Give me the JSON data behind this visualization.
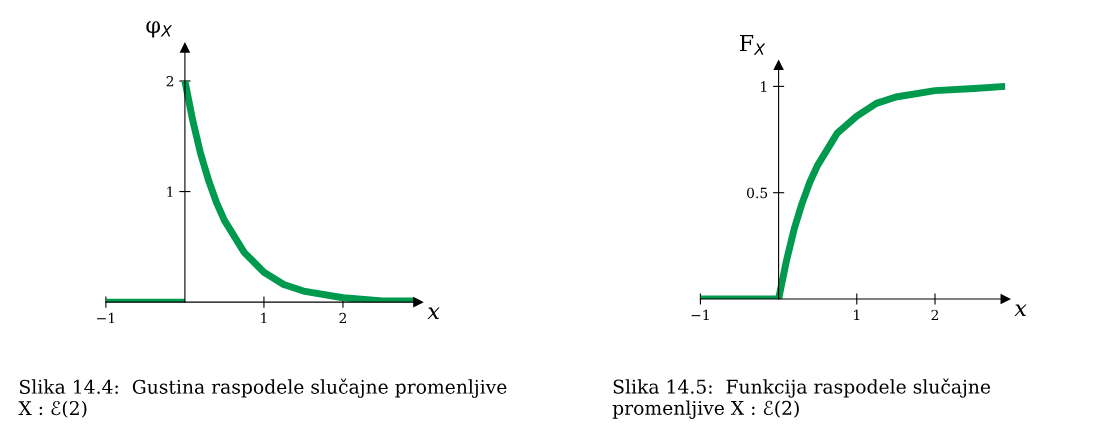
{
  "chart_data": [
    {
      "type": "line",
      "ylabel": "φ$_{X}$",
      "xlabel": "x",
      "xlim": [
        -1,
        2.95
      ],
      "ylim": [
        0,
        2.3
      ],
      "xticks": [
        {
          "value": -1,
          "label": "−1"
        },
        1,
        2
      ],
      "yticks": [
        1,
        2
      ],
      "grid": false,
      "legend": false,
      "marker": "none",
      "line_style": "solid",
      "series": [
        {
          "color": "#009a4e",
          "x": [
            -1,
            0
          ],
          "values": [
            0,
            0
          ]
        },
        {
          "color": "#009a4e",
          "x": [
            0,
            0.1,
            0.2,
            0.3,
            0.4,
            0.5,
            0.75,
            1,
            1.25,
            1.5,
            2,
            2.5,
            2.9
          ],
          "values": [
            2,
            1.64,
            1.34,
            1.1,
            0.9,
            0.74,
            0.45,
            0.27,
            0.16,
            0.1,
            0.04,
            0.01,
            0.01
          ]
        }
      ],
      "annotations": [
        "Slika 14.4:  Gustina raspodele slučajne promenljive X : ℰ(2)"
      ]
    },
    {
      "type": "line",
      "ylabel": "F$_{X}$",
      "xlabel": "x",
      "xlim": [
        -1,
        2.9
      ],
      "ylim": [
        0,
        1.1
      ],
      "xticks": [
        {
          "value": -1,
          "label": "−1"
        },
        1,
        2
      ],
      "yticks": [
        0.5,
        1
      ],
      "grid": false,
      "legend": false,
      "marker": "none",
      "line_style": "solid",
      "series": [
        {
          "color": "#009a4e",
          "x": [
            -1,
            0
          ],
          "values": [
            0,
            0
          ]
        },
        {
          "color": "#009a4e",
          "x": [
            0,
            0.1,
            0.2,
            0.3,
            0.4,
            0.5,
            0.75,
            1,
            1.25,
            1.5,
            2,
            2.5,
            2.9
          ],
          "values": [
            0,
            0.18,
            0.33,
            0.45,
            0.55,
            0.63,
            0.78,
            0.86,
            0.92,
            0.95,
            0.98,
            0.99,
            1.0
          ]
        }
      ],
      "annotations": [
        "Slika 14.5:  Funkcija raspodele slučajne promenljive X : ℰ(2)"
      ]
    }
  ]
}
